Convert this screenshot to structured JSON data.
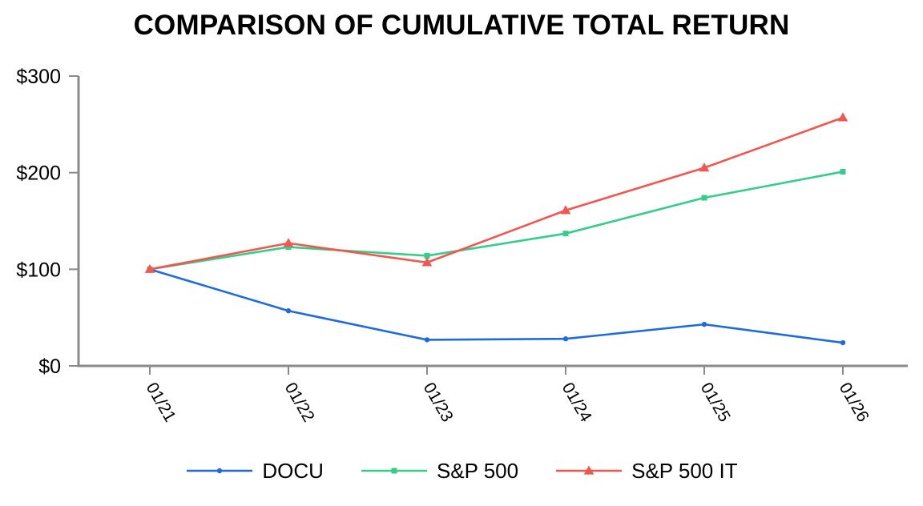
{
  "chart_data": {
    "type": "line",
    "title": "COMPARISON OF CUMULATIVE TOTAL RETURN",
    "categories": [
      "01/21",
      "01/22",
      "01/23",
      "01/24",
      "01/25",
      "01/26"
    ],
    "series": [
      {
        "name": "DOCU",
        "marker": "circle",
        "color": "#1e6be0",
        "values": [
          100,
          57,
          27,
          28,
          43,
          24
        ]
      },
      {
        "name": "S&P 500",
        "marker": "square",
        "color": "#35cd8a",
        "values": [
          100,
          123,
          114,
          137,
          174,
          201
        ]
      },
      {
        "name": "S&P 500 IT",
        "marker": "triangle",
        "color": "#f1564f",
        "values": [
          100,
          127,
          107,
          161,
          205,
          257
        ]
      }
    ],
    "xlabel": "",
    "ylabel": "",
    "ylim": [
      0,
      300
    ],
    "yticks": [
      0,
      100,
      200,
      300
    ],
    "ytick_labels": [
      "$0",
      "$100",
      "$200",
      "$300"
    ],
    "xtick_rotation_deg": 60,
    "grid": false,
    "legend_position": "bottom",
    "axis_color": "#8a8a8a",
    "text_color": "#000000",
    "background_color": "#ffffff"
  }
}
